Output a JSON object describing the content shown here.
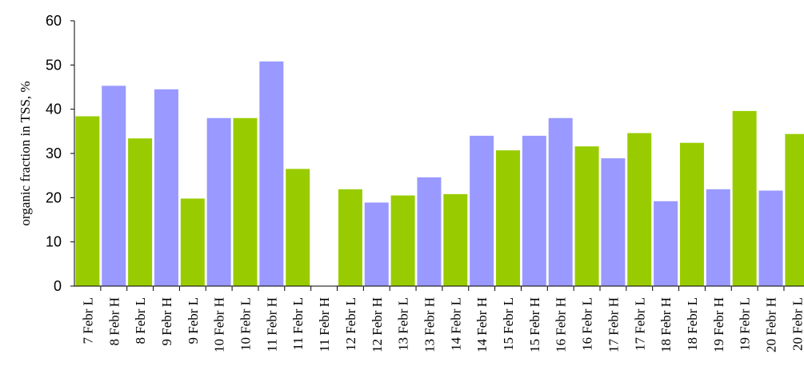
{
  "chart_data": {
    "type": "bar",
    "ylabel": "organic fraction in TSS, %",
    "xlabel": "",
    "ylim": [
      0,
      60
    ],
    "yticks": [
      0,
      10,
      20,
      30,
      40,
      50,
      60
    ],
    "grid": false,
    "colors": {
      "L": "#99cc00",
      "H": "#9999ff"
    },
    "categories": [
      "7 Febr L",
      "8 Febr H",
      "8 Febr L",
      "9 Febr H",
      "9 Febr L",
      "10 Febr H",
      "10 Febr L",
      "11 Febr H",
      "11 Febr L",
      "11 Febr H",
      "12 Febr L",
      "12 Febr H",
      "13 Febr L",
      "13 Febr H",
      "14 Febr L",
      "14 Febr H",
      "15 Febr L",
      "15 Febr H",
      "16 Febr H",
      "16 Febr L",
      "17 Febr H",
      "17 Febr L",
      "18 Febr H",
      "18 Febr L",
      "19 Febr H",
      "19 Febr L",
      "20 Febr H",
      "20 Febr L"
    ],
    "values": [
      38.4,
      45.3,
      33.4,
      44.5,
      19.8,
      38.0,
      38.0,
      50.8,
      26.5,
      0,
      21.9,
      18.9,
      20.5,
      24.6,
      20.8,
      34.0,
      30.7,
      34.0,
      38.0,
      31.6,
      28.9,
      34.6,
      19.2,
      32.4,
      21.9,
      39.6,
      21.6,
      34.4
    ]
  }
}
